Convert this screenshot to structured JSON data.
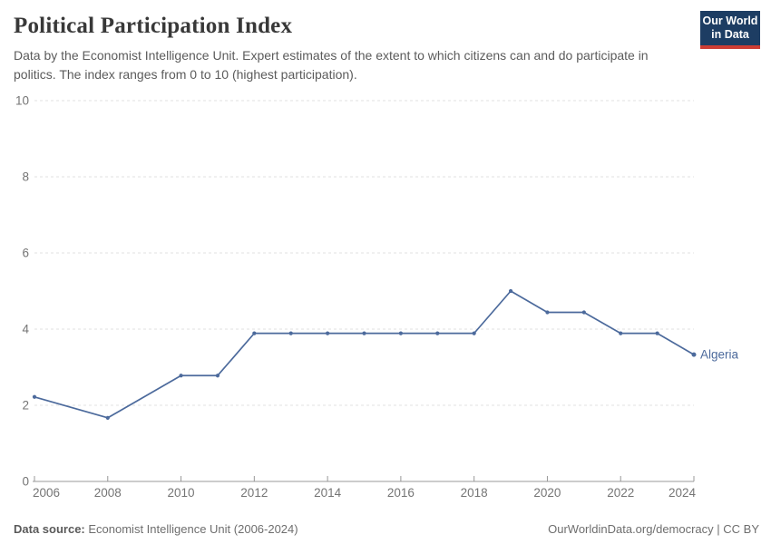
{
  "header": {
    "title": "Political Participation Index",
    "subtitle": "Data by the Economist Intelligence Unit. Expert estimates of the extent to which citizens can and do participate in politics. The index ranges from 0 to 10 (highest participation).",
    "logo": {
      "line1": "Our World",
      "line2": "in Data",
      "bg_color": "#1d3d63",
      "accent_color": "#cd3d34"
    }
  },
  "chart_data": {
    "type": "line",
    "title": "Political Participation Index",
    "xlabel": "",
    "ylabel": "",
    "x": [
      2006,
      2008,
      2010,
      2011,
      2012,
      2013,
      2014,
      2015,
      2016,
      2017,
      2018,
      2019,
      2020,
      2021,
      2022,
      2023,
      2024
    ],
    "series": [
      {
        "name": "Algeria",
        "values": [
          2.22,
          1.67,
          2.78,
          2.78,
          3.89,
          3.89,
          3.89,
          3.89,
          3.89,
          3.89,
          3.89,
          5.0,
          4.44,
          4.44,
          3.89,
          3.89,
          3.33
        ]
      }
    ],
    "xlim": [
      2006,
      2024
    ],
    "ylim": [
      0,
      10
    ],
    "xticks": [
      2006,
      2008,
      2010,
      2012,
      2014,
      2016,
      2018,
      2020,
      2022,
      2024
    ],
    "yticks": [
      0,
      2,
      4,
      6,
      8,
      10
    ],
    "grid": "dashed-horizontal",
    "legend_position": "end-of-line",
    "end_label": "Algeria",
    "colors": {
      "line": "#4c6a9c",
      "grid": "#e2e2e2",
      "axis": "#989898",
      "tick_label": "#757575"
    }
  },
  "footer": {
    "source_label": "Data source:",
    "source_value": " Economist Intelligence Unit (2006-2024)",
    "link": "OurWorldinData.org/democracy | CC BY"
  }
}
